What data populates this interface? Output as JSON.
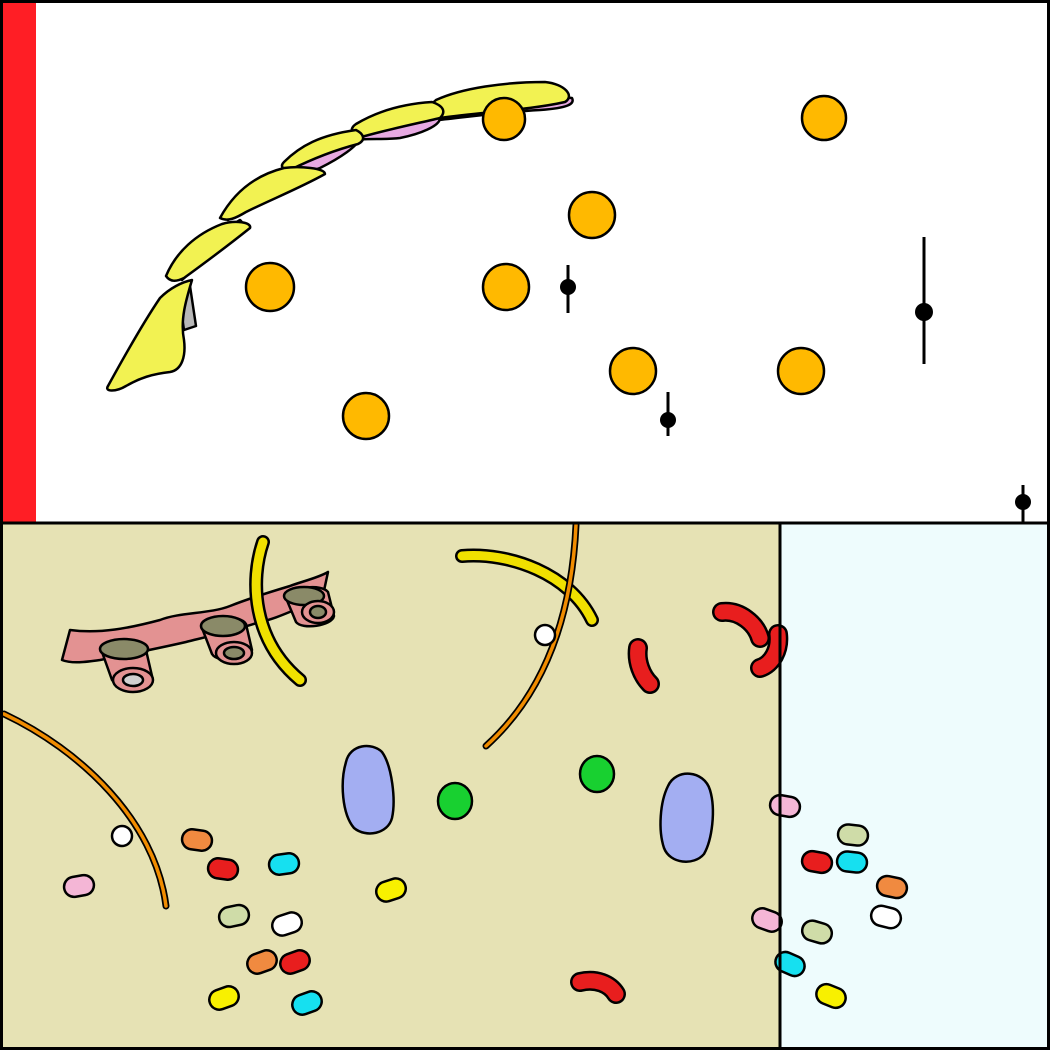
{
  "colors": {
    "frame": "#000000",
    "upper_background": "#ffffff",
    "left_edge_band": "#ff1e25",
    "lower_left_background": "#e6e2b4",
    "lower_right_background": "#eefcfd",
    "er_sheet": "#f2f252",
    "er_lining": "#e7a9e2",
    "granule": "#ffb900",
    "vesicle": "#000000",
    "ribosome_membrane": "#e39292",
    "ribosome_pore": "#8a8a68",
    "microtubule_yellow": "#f0e000",
    "microtubule_orange": "#f08c00",
    "mitochondria": "#e81e1e",
    "vacuole": "#a3aef2",
    "chloroplast": "#18d030",
    "small_white": "#ffffff",
    "capsule_pink": "#f4b6d6",
    "capsule_orange": "#f08a40",
    "capsule_red": "#e81e1e",
    "capsule_cyan": "#16e0f0",
    "capsule_sage": "#cfdca8",
    "capsule_yellow": "#f8f000"
  },
  "icons": {
    "er": "endoplasmic-reticulum-icon",
    "granule": "granule-icon",
    "vesicle": "vesicle-icon",
    "ribosome": "ribosome-icon",
    "microtubule": "microtubule-icon",
    "mitochondrion": "mitochondrion-icon",
    "vacuole": "vacuole-icon",
    "chloroplast": "chloroplast-icon",
    "capsule": "capsule-icon"
  }
}
